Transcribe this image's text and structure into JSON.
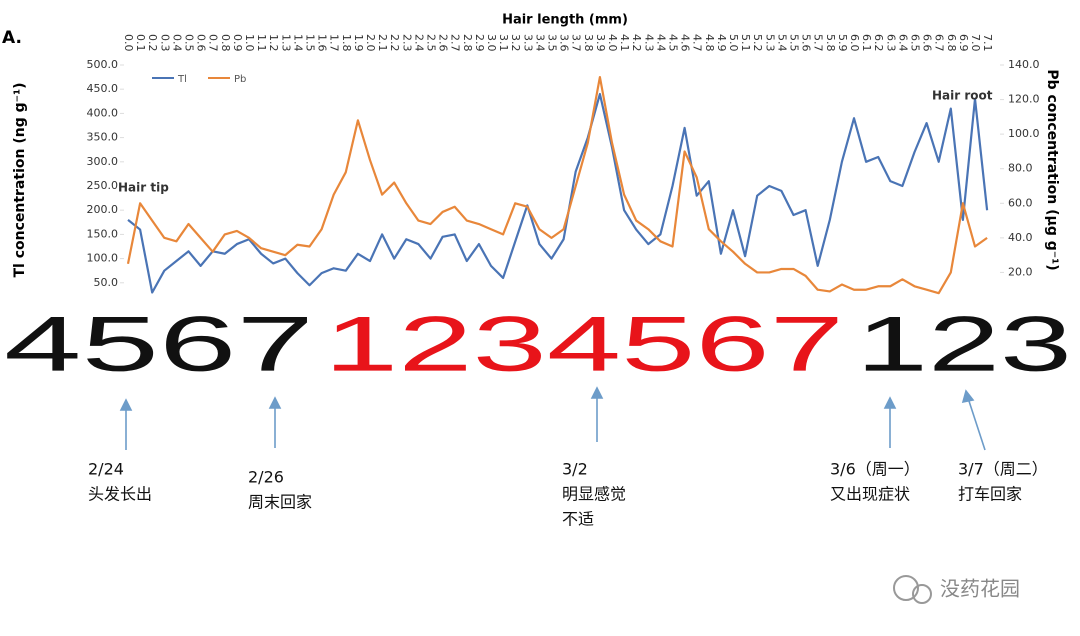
{
  "panel_label": "A.",
  "chart_data": {
    "type": "line",
    "x_label": "Hair length (mm)",
    "y_label": "Tl concentration (ng g⁻¹)",
    "y2_label": "Pb concentration (μg g⁻¹)",
    "categories": [
      "0.0",
      "0.1",
      "0.2",
      "0.3",
      "0.4",
      "0.5",
      "0.6",
      "0.7",
      "0.8",
      "0.9",
      "1.0",
      "1.1",
      "1.2",
      "1.3",
      "1.4",
      "1.5",
      "1.6",
      "1.7",
      "1.8",
      "1.9",
      "2.0",
      "2.1",
      "2.2",
      "2.3",
      "2.4",
      "2.5",
      "2.6",
      "2.7",
      "2.8",
      "2.9",
      "3.0",
      "3.1",
      "3.2",
      "3.3",
      "3.4",
      "3.5",
      "3.6",
      "3.7",
      "3.8",
      "3.9",
      "4.0",
      "4.1",
      "4.2",
      "4.3",
      "4.4",
      "4.5",
      "4.6",
      "4.7",
      "4.8",
      "4.9",
      "5.0",
      "5.1",
      "5.2",
      "5.3",
      "5.4",
      "5.5",
      "5.6",
      "5.7",
      "5.8",
      "5.9",
      "6.0",
      "6.1",
      "6.2",
      "6.3",
      "6.4",
      "6.5",
      "6.6",
      "6.7",
      "6.8",
      "6.9",
      "7.0",
      "7.1"
    ],
    "series": [
      {
        "name": "Tl",
        "color": "#4a74b5",
        "values": [
          180,
          160,
          30,
          75,
          95,
          115,
          85,
          115,
          110,
          130,
          140,
          110,
          90,
          100,
          70,
          45,
          70,
          80,
          75,
          110,
          95,
          150,
          100,
          140,
          130,
          100,
          145,
          150,
          95,
          130,
          85,
          60,
          135,
          210,
          130,
          100,
          140,
          280,
          350,
          440,
          330,
          200,
          160,
          130,
          150,
          250,
          370,
          230,
          260,
          110,
          200,
          105,
          230,
          250,
          240,
          190,
          200,
          85,
          180,
          300,
          390,
          300,
          310,
          260,
          250,
          320,
          380,
          300,
          410,
          180,
          430,
          200
        ]
      },
      {
        "name": "Pb",
        "color": "#e8873a",
        "axis": "y2",
        "values": [
          25,
          60,
          50,
          40,
          38,
          48,
          40,
          32,
          42,
          44,
          40,
          34,
          32,
          30,
          36,
          35,
          45,
          65,
          78,
          108,
          85,
          65,
          72,
          60,
          50,
          48,
          55,
          58,
          50,
          48,
          45,
          42,
          60,
          58,
          45,
          40,
          45,
          70,
          95,
          133,
          95,
          65,
          50,
          45,
          38,
          35,
          90,
          75,
          45,
          38,
          32,
          25,
          20,
          20,
          22,
          22,
          18,
          10,
          9,
          13,
          10,
          10,
          12,
          12,
          16,
          12,
          10,
          8,
          20,
          60,
          35,
          40
        ]
      }
    ],
    "ylim": [
      0,
      500
    ],
    "yticks": [
      {
        "value": 50,
        "label": "50.0"
      },
      {
        "value": 100,
        "label": "100.0"
      },
      {
        "value": 150,
        "label": "150.0"
      },
      {
        "value": 200,
        "label": "200.0"
      },
      {
        "value": 250,
        "label": "250.0"
      },
      {
        "value": 300,
        "label": "300.0"
      },
      {
        "value": 350,
        "label": "350.0"
      },
      {
        "value": 400,
        "label": "400.0"
      },
      {
        "value": 450,
        "label": "450.0"
      },
      {
        "value": 500,
        "label": "500.0"
      }
    ],
    "y2lim": [
      0,
      140
    ],
    "y2ticks": [
      {
        "value": 20,
        "label": "20.0"
      },
      {
        "value": 40,
        "label": "40.0"
      },
      {
        "value": 60,
        "label": "60.0"
      },
      {
        "value": 80,
        "label": "80.0"
      },
      {
        "value": 100,
        "label": "100.0"
      },
      {
        "value": 120,
        "label": "120.0"
      },
      {
        "value": 140,
        "label": "140.0"
      }
    ],
    "annotations": [
      "Hair tip",
      "Hair root"
    ]
  },
  "day_digits": [
    {
      "text": "4567",
      "color": "#111111"
    },
    {
      "text": "1234567",
      "color": "#e8141a"
    },
    {
      "text": "123",
      "color": "#111111"
    }
  ],
  "notes": [
    {
      "lines": [
        "2/24",
        "头发长出"
      ]
    },
    {
      "lines": [
        "2/26",
        "周末回家"
      ]
    },
    {
      "lines": [
        "3/2",
        "明显感觉",
        "不适"
      ]
    },
    {
      "lines": [
        "3/6（周一）",
        "又出现症状"
      ]
    },
    {
      "lines": [
        "3/7（周二）",
        "打车回家"
      ]
    }
  ],
  "watermark": "没药花园"
}
